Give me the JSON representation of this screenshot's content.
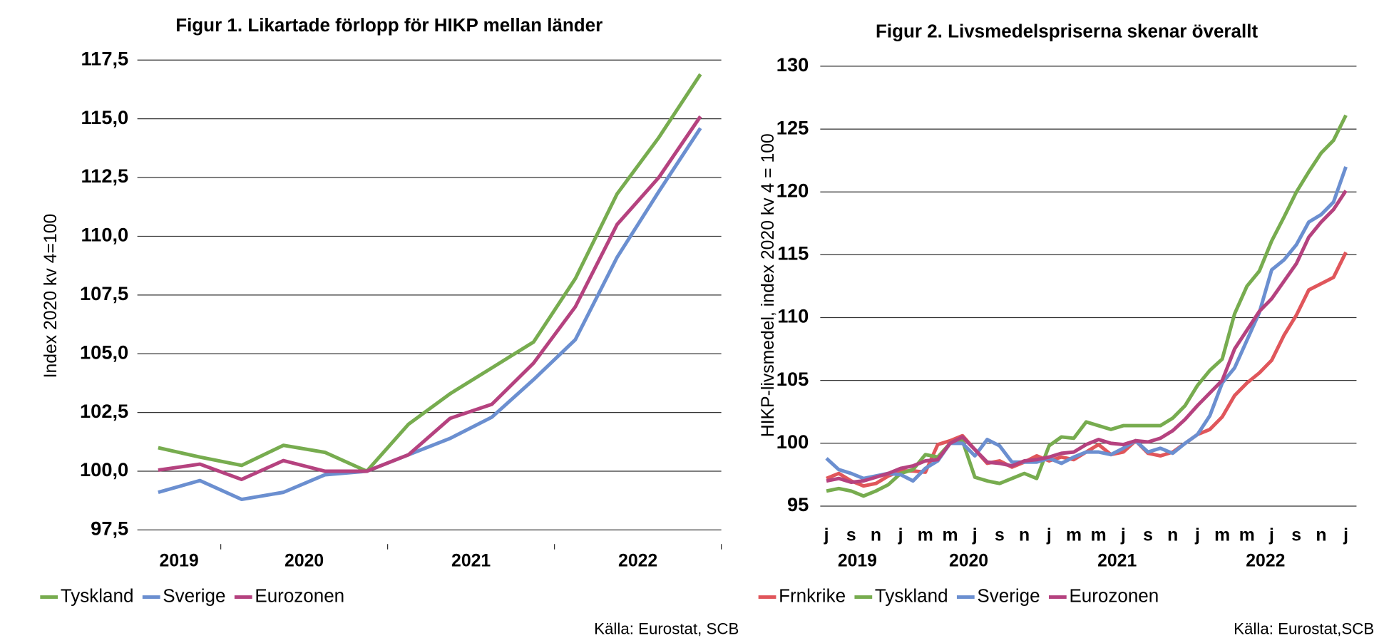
{
  "chart_data": [
    {
      "type": "line",
      "title": "Figur 1. Likartade förlopp för HIKP mellan länder",
      "y_label": "Index 2020 kv 4=100",
      "source": "Källa: Eurostat, SCB",
      "categories": [
        null,
        null,
        null,
        null,
        null,
        null,
        null,
        null,
        null,
        null,
        null,
        null,
        null,
        null
      ],
      "groups": [
        {
          "label": "2019",
          "count": 2
        },
        {
          "label": "2020",
          "count": 4
        },
        {
          "label": "2021",
          "count": 4
        },
        {
          "label": "2022",
          "count": 4
        }
      ],
      "group_dividers": true,
      "ylim": [
        97.5,
        117.5
      ],
      "yticks": [
        {
          "value": 97.5,
          "label": "97,5"
        },
        {
          "value": 100,
          "label": "100,0"
        },
        {
          "value": 102.5,
          "label": "102,5"
        },
        {
          "value": 105,
          "label": "105,0"
        },
        {
          "value": 107.5,
          "label": "107,5"
        },
        {
          "value": 110,
          "label": "110,0"
        },
        {
          "value": 112.5,
          "label": "112,5"
        },
        {
          "value": 115,
          "label": "115,0"
        },
        {
          "value": 117.5,
          "label": "117,5"
        }
      ],
      "grid": true,
      "legend": "bottom",
      "series": [
        {
          "name": "Tyskland",
          "color": "#77ac4f",
          "values": [
            101.0,
            100.6,
            100.25,
            101.1,
            100.8,
            100.0,
            102.0,
            103.3,
            104.4,
            105.5,
            108.2,
            111.8,
            114.2,
            116.9
          ]
        },
        {
          "name": "Sverige",
          "color": "#6b8fd0",
          "values": [
            99.1,
            99.6,
            98.8,
            99.1,
            99.85,
            100.0,
            100.7,
            101.4,
            102.3,
            103.9,
            105.6,
            109.1,
            111.9,
            114.6
          ]
        },
        {
          "name": "Eurozonen",
          "color": "#b5427f",
          "values": [
            100.05,
            100.3,
            99.65,
            100.45,
            100.0,
            100.0,
            100.7,
            102.25,
            102.85,
            104.6,
            107.0,
            110.5,
            112.5,
            115.1
          ]
        }
      ]
    },
    {
      "type": "line",
      "title": "Figur 2.  Livsmedelspriserna skenar överallt",
      "y_label": "HIKP-livsmedel, index 2020 kv 4 = 100",
      "source": "Källa: Eurostat,SCB",
      "categories": [
        "j",
        null,
        "s",
        null,
        "n",
        null,
        "j",
        null,
        "m",
        null,
        "m",
        null,
        "j",
        null,
        "s",
        null,
        "n",
        null,
        "j",
        null,
        "m",
        null,
        "m",
        null,
        "j",
        null,
        "s",
        null,
        "n",
        null,
        "j",
        null,
        "m",
        null,
        "m",
        null,
        "j",
        null,
        "s",
        null,
        "n",
        null,
        "j"
      ],
      "groups": [
        {
          "label": "2019",
          "count": 6
        },
        {
          "label": "2020",
          "count": 12
        },
        {
          "label": "2021",
          "count": 12
        },
        {
          "label": "2022",
          "count": 12
        }
      ],
      "group_dividers": false,
      "ylim": [
        95,
        130
      ],
      "yticks": [
        95,
        100,
        105,
        110,
        115,
        120,
        125,
        130
      ],
      "grid": true,
      "legend": "bottom",
      "series": [
        {
          "name": "Frnkrike",
          "color": "#e0565b",
          "values": [
            97.2,
            97.6,
            97.0,
            96.6,
            96.8,
            97.4,
            97.8,
            97.8,
            97.7,
            99.9,
            100.2,
            100.6,
            99.5,
            98.4,
            98.6,
            98.1,
            98.5,
            99.0,
            98.6,
            98.9,
            98.7,
            99.3,
            99.9,
            99.1,
            99.3,
            100.2,
            99.2,
            99.0,
            99.3,
            100.0,
            100.7,
            101.1,
            102.1,
            103.8,
            104.8,
            105.6,
            106.6,
            108.6,
            110.2,
            112.2,
            112.7,
            113.2,
            115.2
          ]
        },
        {
          "name": "Tyskland",
          "color": "#77ac4f",
          "values": [
            96.2,
            96.4,
            96.2,
            95.8,
            96.2,
            96.7,
            97.6,
            97.9,
            99.1,
            98.9,
            100.0,
            100.2,
            97.3,
            97.0,
            96.8,
            97.2,
            97.6,
            97.2,
            99.8,
            100.5,
            100.4,
            101.7,
            101.4,
            101.1,
            101.4,
            101.4,
            101.4,
            101.4,
            102.0,
            103.0,
            104.6,
            105.8,
            106.7,
            110.3,
            112.5,
            113.7,
            116.1,
            118.0,
            120.0,
            121.6,
            123.1,
            124.1,
            126.1
          ]
        },
        {
          "name": "Sverige",
          "color": "#6b8fd0",
          "values": [
            98.8,
            97.9,
            97.6,
            97.2,
            97.4,
            97.6,
            97.5,
            97.0,
            98.0,
            98.6,
            100.0,
            100.0,
            99.0,
            100.3,
            99.8,
            98.5,
            98.5,
            98.5,
            98.8,
            98.4,
            98.9,
            99.3,
            99.3,
            99.1,
            99.6,
            100.2,
            99.3,
            99.6,
            99.2,
            100.0,
            100.7,
            102.2,
            104.8,
            106.0,
            108.2,
            110.4,
            113.8,
            114.6,
            115.8,
            117.6,
            118.2,
            119.2,
            122.0
          ]
        },
        {
          "name": "Eurozonen",
          "color": "#b5427f",
          "values": [
            97.0,
            97.2,
            96.9,
            97.0,
            97.3,
            97.6,
            98.0,
            98.2,
            98.6,
            98.7,
            100.0,
            100.5,
            99.5,
            98.5,
            98.4,
            98.2,
            98.6,
            98.7,
            98.9,
            99.2,
            99.3,
            99.9,
            100.3,
            100.0,
            99.9,
            100.2,
            100.1,
            100.4,
            101.0,
            101.9,
            103.0,
            104.0,
            105.0,
            107.5,
            109.0,
            110.5,
            111.5,
            112.9,
            114.3,
            116.4,
            117.6,
            118.6,
            120.1
          ]
        }
      ]
    }
  ]
}
